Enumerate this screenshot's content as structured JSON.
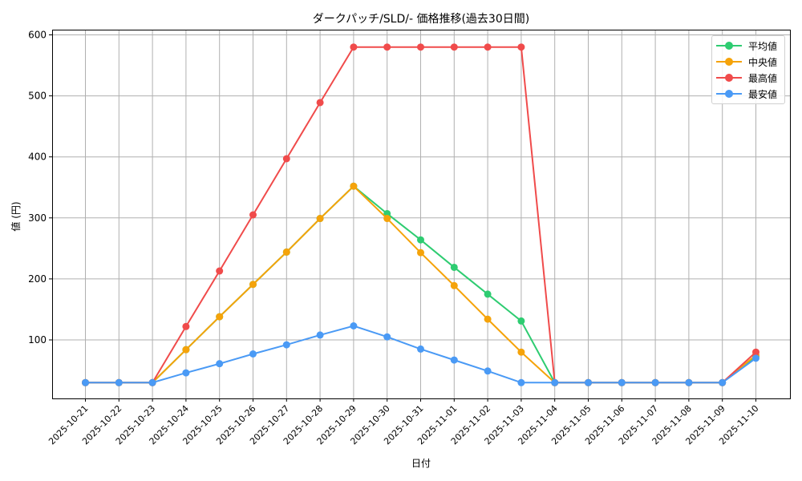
{
  "chart_data": {
    "type": "line",
    "title": "ダークパッチ/SLD/- 価格推移(過去30日間)",
    "xlabel": "日付",
    "ylabel": "値 (円)",
    "ylim": [
      0,
      610
    ],
    "yticks": [
      100,
      200,
      300,
      400,
      500,
      600
    ],
    "grid": true,
    "legend_position": "upper right",
    "x": [
      "2025-10-21",
      "2025-10-22",
      "2025-10-23",
      "2025-10-24",
      "2025-10-25",
      "2025-10-26",
      "2025-10-27",
      "2025-10-28",
      "2025-10-29",
      "2025-10-30",
      "2025-10-31",
      "2025-11-01",
      "2025-11-02",
      "2025-11-03",
      "2025-11-04",
      "2025-11-05",
      "2025-11-06",
      "2025-11-07",
      "2025-11-08",
      "2025-11-09",
      "2025-11-10"
    ],
    "series": [
      {
        "name": "平均値",
        "color": "#2ecc71",
        "values": [
          30,
          30,
          30,
          84,
          138,
          191,
          244,
          299,
          352,
          307,
          264,
          219,
          175,
          131,
          30,
          30,
          30,
          30,
          30,
          30,
          73
        ]
      },
      {
        "name": "中央値",
        "color": "#f5a30a",
        "values": [
          30,
          30,
          30,
          84,
          138,
          191,
          244,
          299,
          352,
          299,
          243,
          189,
          134,
          80,
          30,
          30,
          30,
          30,
          30,
          30,
          75
        ]
      },
      {
        "name": "最高値",
        "color": "#f04b4b",
        "values": [
          30,
          30,
          30,
          122,
          213,
          305,
          397,
          489,
          580,
          580,
          580,
          580,
          580,
          580,
          30,
          30,
          30,
          30,
          30,
          30,
          80
        ]
      },
      {
        "name": "最安値",
        "color": "#4a9af5",
        "values": [
          30,
          30,
          30,
          46,
          61,
          77,
          92,
          108,
          123,
          105,
          85,
          67,
          49,
          30,
          30,
          30,
          30,
          30,
          30,
          30,
          70
        ]
      }
    ]
  },
  "legend": {
    "items": [
      {
        "label": "平均値",
        "color": "#2ecc71"
      },
      {
        "label": "中央値",
        "color": "#f5a30a"
      },
      {
        "label": "最高値",
        "color": "#f04b4b"
      },
      {
        "label": "最安値",
        "color": "#4a9af5"
      }
    ]
  }
}
